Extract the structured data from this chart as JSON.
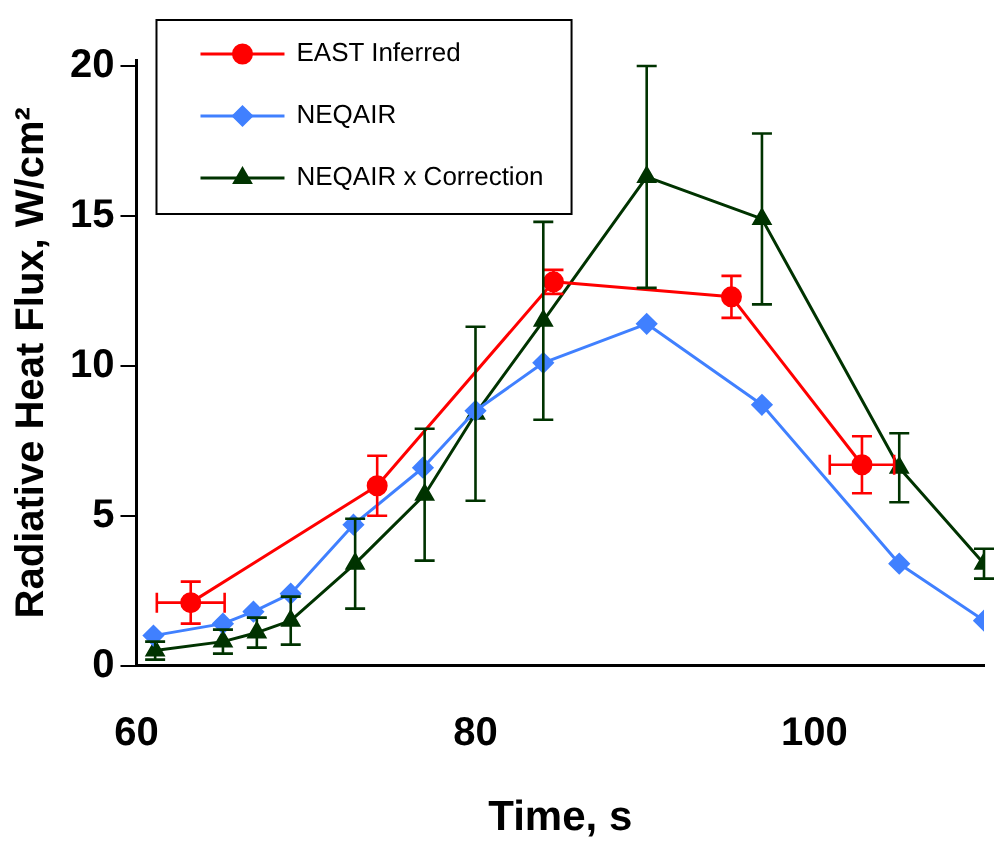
{
  "chart_data": {
    "type": "line",
    "xlabel": "Time, s",
    "ylabel": "Radiative Heat Flux, W/cm²",
    "xlim": [
      60,
      110
    ],
    "xticks": [
      60,
      80,
      100
    ],
    "ylim": [
      0,
      20.2
    ],
    "yticks": [
      0,
      5,
      10,
      15,
      20
    ],
    "grid": false,
    "legend": "top left",
    "line_style": "solid",
    "series": [
      {
        "name": "EAST Inferred",
        "color": "#ff0000",
        "marker": "circle",
        "x": [
          63.2,
          74.2,
          84.6,
          95.1,
          102.8
        ],
        "values": [
          2.1,
          6.0,
          12.8,
          12.3,
          6.7
        ],
        "errors": [
          0.7,
          1.0,
          0.4,
          0.7,
          0.95
        ],
        "xerrors": [
          2,
          null,
          null,
          null,
          1.9
        ]
      },
      {
        "name": "NEQAIR",
        "color": "#4080ff",
        "marker": "diamond",
        "x": [
          61,
          65.1,
          66.9,
          69.1,
          72.8,
          76.9,
          80,
          84,
          90.1,
          96.9,
          105,
          110
        ],
        "values": [
          1.0,
          1.4,
          1.8,
          2.4,
          4.7,
          6.6,
          8.5,
          10.1,
          11.4,
          8.7,
          3.4,
          1.5
        ]
      },
      {
        "name": "NEQAIR x Correction",
        "color": "#003300",
        "marker": "triangle",
        "x": [
          61.1,
          65.1,
          67.1,
          69.1,
          72.9,
          77,
          80,
          84,
          90.1,
          96.9,
          105,
          110
        ],
        "values": [
          0.5,
          0.8,
          1.1,
          1.5,
          3.4,
          5.7,
          8.4,
          11.5,
          16.3,
          14.9,
          6.6,
          3.4
        ],
        "errors": [
          0.3,
          0.4,
          0.5,
          0.8,
          1.5,
          2.2,
          2.9,
          3.3,
          3.7,
          2.85,
          1.15,
          0.5
        ]
      }
    ]
  }
}
